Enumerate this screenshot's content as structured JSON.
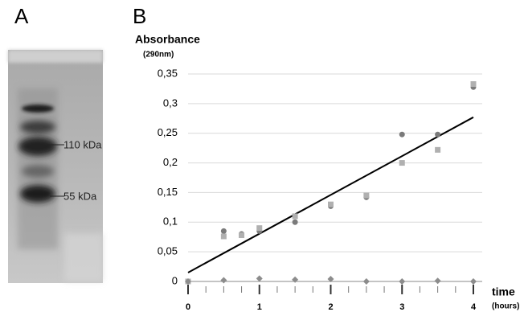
{
  "panels": {
    "a": "A",
    "b": "B"
  },
  "gel": {
    "labels": [
      "110 kDa",
      "55 kDa"
    ]
  },
  "chart_data": {
    "type": "scatter",
    "y_label": "Absorbance",
    "y_unit": "(290nm)",
    "x_label": "time",
    "x_unit": "(hours)",
    "x": [
      0,
      0.5,
      0.75,
      1,
      1.5,
      2,
      2.5,
      3,
      3.5,
      4
    ],
    "series": [
      {
        "marker": "circle",
        "color": "#7a7a7a",
        "values": [
          0,
          0.085,
          0.08,
          0.085,
          0.1,
          0.127,
          0.142,
          0.248,
          0.248,
          0.328
        ]
      },
      {
        "marker": "square",
        "color": "#b0b0b0",
        "values": [
          0,
          0.076,
          0.078,
          0.09,
          0.11,
          0.13,
          0.145,
          0.2,
          0.222,
          0.333
        ]
      },
      {
        "marker": "diamond",
        "color": "#8c8c8c",
        "values": [
          0,
          0.002,
          null,
          0.005,
          0.003,
          0.004,
          0,
          0,
          0.001,
          0
        ]
      }
    ],
    "trendline": {
      "color": "#000000",
      "x": [
        0,
        4
      ],
      "values": [
        0.015,
        0.277
      ]
    },
    "xlim": [
      0,
      4
    ],
    "ylim": [
      0,
      0.35
    ],
    "xticks": [
      0,
      1,
      2,
      3,
      4
    ],
    "xminorticks": [
      0.25,
      0.5,
      0.75,
      1.25,
      1.5,
      1.75,
      2.25,
      2.5,
      2.75,
      3.25,
      3.5,
      3.75
    ],
    "yticks": [
      0,
      {
        "value": 0.05,
        "label": "0,05"
      },
      {
        "value": 0.1,
        "label": "0,1"
      },
      {
        "value": 0.15,
        "label": "0,15"
      },
      {
        "value": 0.2,
        "label": "0,2"
      },
      {
        "value": 0.25,
        "label": "0,25"
      },
      {
        "value": 0.3,
        "label": "0,3"
      },
      {
        "value": 0.35,
        "label": "0,35"
      }
    ],
    "grid": true
  }
}
